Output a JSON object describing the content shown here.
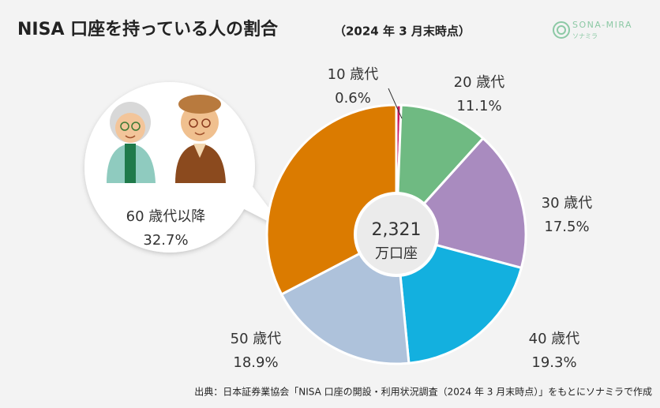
{
  "chart_data": {
    "type": "donut",
    "title": "NISA 口座を持っている人の割合",
    "subtitle": "（2024 年 3 月末時点）",
    "center_value": "2,321",
    "center_unit": "万口座",
    "categories": [
      "10 歳代",
      "20 歳代",
      "30 歳代",
      "40 歳代",
      "50 歳代",
      "60 歳代以降"
    ],
    "values": [
      0.6,
      11.1,
      17.5,
      19.3,
      18.9,
      32.7
    ],
    "value_labels": [
      "0.6%",
      "11.1%",
      "17.5%",
      "19.3%",
      "18.9%",
      "32.7%"
    ],
    "colors": [
      "#c8185e",
      "#6fba82",
      "#a98bbf",
      "#13b0df",
      "#aec2db",
      "#db7b00"
    ]
  },
  "logo": {
    "name": "SONA-MIRA",
    "kana": "ソナミラ"
  },
  "source": "出典：日本証券業協会「NISA 口座の開設・利用状況調査（2024 年 3 月末時点）」をもとにソナミラで作成"
}
